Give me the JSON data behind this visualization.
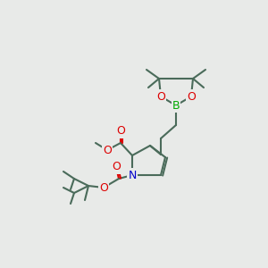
{
  "background_color": "#e8eae8",
  "bond_color": "#4a6b5a",
  "atom_colors": {
    "O": "#dd0000",
    "N": "#0000cc",
    "B": "#00aa00",
    "C": "#4a6b5a"
  },
  "figsize": [
    3.0,
    3.0
  ],
  "dpi": 100
}
